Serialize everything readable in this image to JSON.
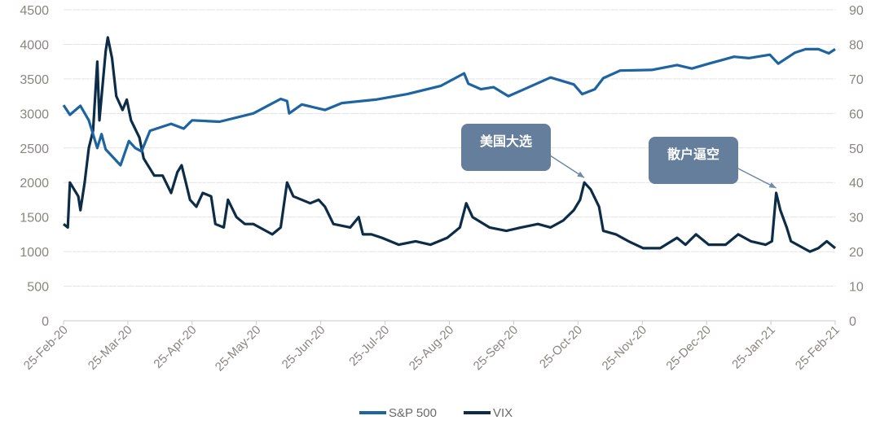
{
  "chart_data": {
    "type": "line",
    "title": "",
    "x_unit": "days since 25-Feb-20",
    "x_tick_labels": [
      "25-Feb-20",
      "25-Mar-20",
      "25-Apr-20",
      "25-May-20",
      "25-Jun-20",
      "25-Jul-20",
      "25-Aug-20",
      "25-Sep-20",
      "25-Oct-20",
      "25-Nov-20",
      "25-Dec-20",
      "25-Jan-21",
      "25-Feb-21"
    ],
    "x_range": [
      0,
      366
    ],
    "left_axis": {
      "range": [
        0,
        4500
      ],
      "ticks": [
        "0",
        "500",
        "1000",
        "1500",
        "2000",
        "2500",
        "3000",
        "3500",
        "4000",
        "4500"
      ]
    },
    "right_axis": {
      "range": [
        0,
        90
      ],
      "ticks": [
        "0",
        "10",
        "20",
        "30",
        "40",
        "50",
        "60",
        "70",
        "80",
        "90"
      ]
    },
    "grid": true,
    "legend_position": "bottom",
    "series": [
      {
        "name": "S&P 500",
        "axis": "left",
        "color": "#1d64a0",
        "points": [
          [
            0,
            3120
          ],
          [
            3,
            2980
          ],
          [
            8,
            3110
          ],
          [
            12,
            2900
          ],
          [
            16,
            2500
          ],
          [
            18,
            2700
          ],
          [
            20,
            2480
          ],
          [
            27,
            2250
          ],
          [
            31,
            2600
          ],
          [
            34,
            2500
          ],
          [
            37,
            2450
          ],
          [
            41,
            2750
          ],
          [
            51,
            2850
          ],
          [
            57,
            2780
          ],
          [
            61,
            2900
          ],
          [
            74,
            2880
          ],
          [
            90,
            3000
          ],
          [
            103,
            3210
          ],
          [
            106,
            3180
          ],
          [
            107,
            3000
          ],
          [
            113,
            3130
          ],
          [
            124,
            3050
          ],
          [
            132,
            3150
          ],
          [
            148,
            3200
          ],
          [
            163,
            3280
          ],
          [
            179,
            3400
          ],
          [
            190,
            3580
          ],
          [
            192,
            3430
          ],
          [
            198,
            3350
          ],
          [
            204,
            3380
          ],
          [
            211,
            3250
          ],
          [
            217,
            3330
          ],
          [
            231,
            3520
          ],
          [
            242,
            3420
          ],
          [
            246,
            3280
          ],
          [
            252,
            3350
          ],
          [
            256,
            3510
          ],
          [
            264,
            3620
          ],
          [
            279,
            3630
          ],
          [
            291,
            3700
          ],
          [
            298,
            3650
          ],
          [
            306,
            3720
          ],
          [
            318,
            3820
          ],
          [
            325,
            3800
          ],
          [
            335,
            3850
          ],
          [
            339,
            3720
          ],
          [
            347,
            3880
          ],
          [
            352,
            3930
          ],
          [
            358,
            3930
          ],
          [
            363,
            3870
          ],
          [
            366,
            3930
          ]
        ]
      },
      {
        "name": "VIX",
        "axis": "right",
        "color": "#0c2c48",
        "points": [
          [
            0,
            28
          ],
          [
            2,
            27
          ],
          [
            3,
            40
          ],
          [
            7,
            36
          ],
          [
            8,
            32
          ],
          [
            10,
            40
          ],
          [
            12,
            50
          ],
          [
            14,
            55
          ],
          [
            16,
            75
          ],
          [
            17,
            58
          ],
          [
            20,
            78
          ],
          [
            21,
            82
          ],
          [
            23,
            76
          ],
          [
            25,
            65
          ],
          [
            28,
            61
          ],
          [
            30,
            64
          ],
          [
            32,
            58
          ],
          [
            36,
            53
          ],
          [
            38,
            47
          ],
          [
            39,
            46
          ],
          [
            43,
            42
          ],
          [
            47,
            42
          ],
          [
            51,
            37
          ],
          [
            54,
            43
          ],
          [
            56,
            45
          ],
          [
            58,
            40
          ],
          [
            60,
            35
          ],
          [
            63,
            33
          ],
          [
            66,
            37
          ],
          [
            70,
            36
          ],
          [
            72,
            28
          ],
          [
            76,
            27
          ],
          [
            78,
            35
          ],
          [
            82,
            30
          ],
          [
            86,
            28
          ],
          [
            90,
            28
          ],
          [
            93,
            27
          ],
          [
            99,
            25
          ],
          [
            103,
            27
          ],
          [
            106,
            40
          ],
          [
            109,
            36
          ],
          [
            117,
            34
          ],
          [
            121,
            35
          ],
          [
            124,
            33
          ],
          [
            128,
            28
          ],
          [
            136,
            27
          ],
          [
            140,
            30
          ],
          [
            142,
            25
          ],
          [
            146,
            25
          ],
          [
            151,
            24
          ],
          [
            159,
            22
          ],
          [
            167,
            23
          ],
          [
            174,
            22
          ],
          [
            182,
            24
          ],
          [
            188,
            27
          ],
          [
            191,
            34
          ],
          [
            194,
            30
          ],
          [
            202,
            27
          ],
          [
            210,
            26
          ],
          [
            217,
            27
          ],
          [
            225,
            28
          ],
          [
            231,
            27
          ],
          [
            237,
            29
          ],
          [
            242,
            32
          ],
          [
            245,
            35
          ],
          [
            247,
            40
          ],
          [
            250,
            38
          ],
          [
            254,
            33
          ],
          [
            256,
            26
          ],
          [
            262,
            25
          ],
          [
            268,
            23
          ],
          [
            275,
            21
          ],
          [
            283,
            21
          ],
          [
            291,
            24
          ],
          [
            295,
            22
          ],
          [
            300,
            25
          ],
          [
            306,
            22
          ],
          [
            314,
            22
          ],
          [
            320,
            25
          ],
          [
            326,
            23
          ],
          [
            333,
            22
          ],
          [
            336,
            23
          ],
          [
            338,
            37
          ],
          [
            340,
            32
          ],
          [
            343,
            27
          ],
          [
            345,
            23
          ],
          [
            351,
            21
          ],
          [
            354,
            20
          ],
          [
            358,
            21
          ],
          [
            362,
            23
          ],
          [
            366,
            21
          ]
        ]
      }
    ],
    "annotations": [
      {
        "text": "美国大选",
        "target": [
          247,
          40
        ]
      },
      {
        "text": "散户逼空",
        "target": [
          338,
          37
        ]
      }
    ]
  }
}
